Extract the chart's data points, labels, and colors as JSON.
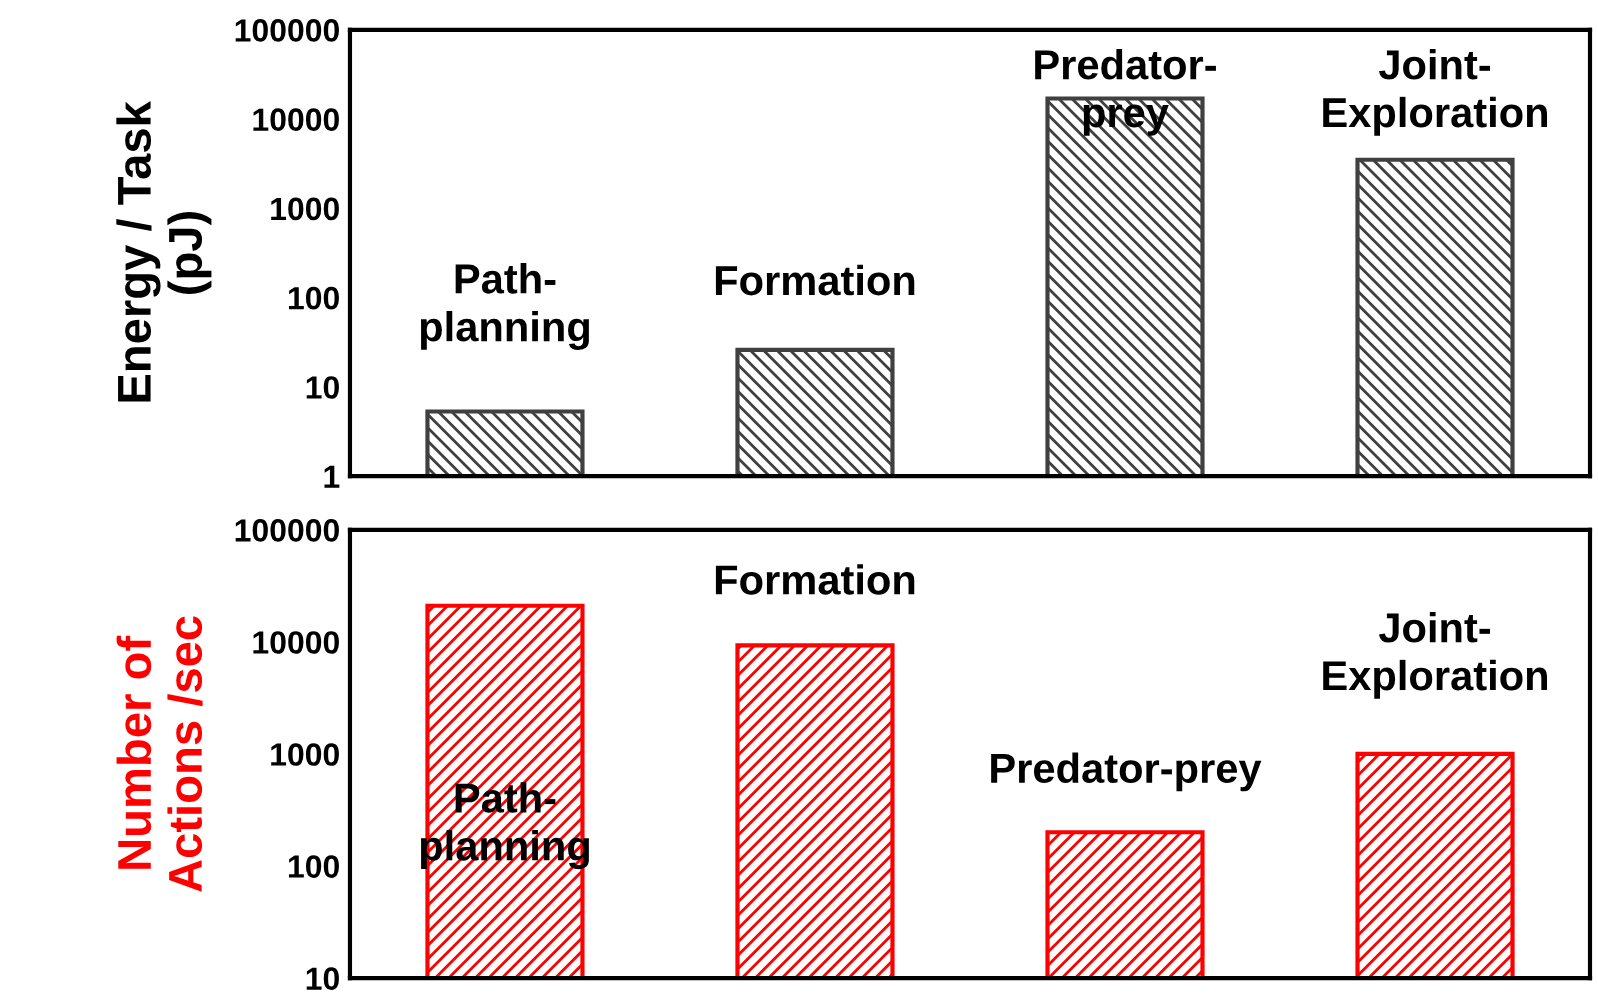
{
  "chart_data": [
    {
      "type": "bar",
      "ylabel": "Energy / Task\n(pJ)",
      "categories": [
        "Path-\nplanning",
        "Formation",
        "Predator-\nprey",
        "Joint-\nExploration"
      ],
      "values": [
        5.3,
        26,
        17000,
        3500
      ],
      "color": "#404040",
      "log": true,
      "ylim": [
        1,
        100000
      ],
      "yticks": [
        1,
        10,
        100,
        1000,
        10000,
        100000
      ],
      "grid": false,
      "legend": false
    },
    {
      "type": "bar",
      "ylabel": "Number of\nActions /sec",
      "categories": [
        "Path-\nplanning",
        "Formation",
        "Predator-prey",
        "Joint-\nExploration"
      ],
      "values": [
        21000,
        9300,
        200,
        1000
      ],
      "color": "#ff0000",
      "log": true,
      "ylim": [
        10,
        100000
      ],
      "yticks": [
        10,
        100,
        1000,
        10000,
        100000
      ],
      "grid": false,
      "legend": false
    }
  ]
}
